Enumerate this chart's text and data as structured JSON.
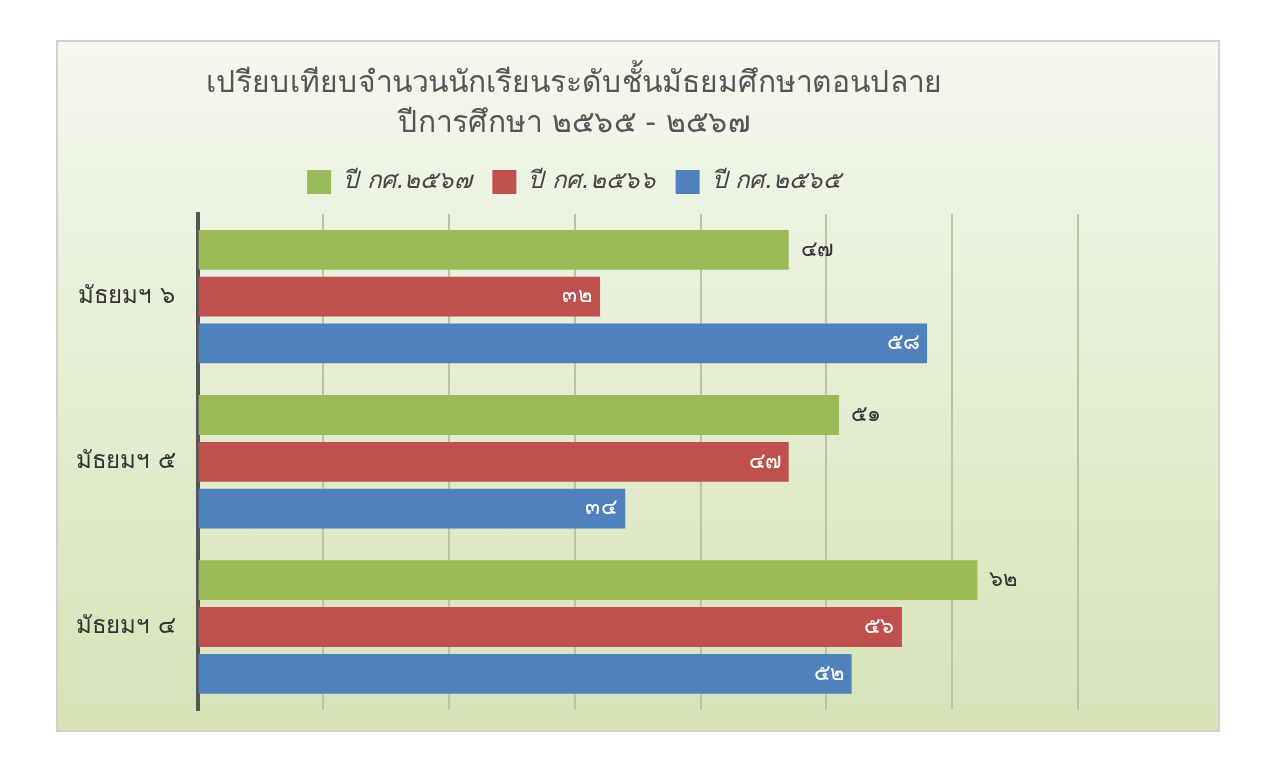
{
  "chart_data": {
    "type": "bar",
    "orientation": "horizontal",
    "title": "เปรียบเทียบจำนวนนักเรียนระดับชั้นมัธยมศึกษาตอนปลาย",
    "subtitle": "ปีการศึกษา ๒๕๖๕ - ๒๕๖๗",
    "categories": [
      "มัธยมฯ ๖",
      "มัธยมฯ ๕",
      "มัธยมฯ ๔"
    ],
    "series": [
      {
        "name": "ปี กศ.๒๕๖๗",
        "color": "#9bbb59",
        "values": [
          47,
          51,
          62
        ],
        "value_labels": [
          "๔๗",
          "๕๑",
          "๖๒"
        ]
      },
      {
        "name": "ปี กศ.๒๕๖๖",
        "color": "#c0504d",
        "values": [
          32,
          47,
          56
        ],
        "value_labels": [
          "๓๒",
          "๔๗",
          "๕๖"
        ]
      },
      {
        "name": "ปี กศ.๒๕๖๕",
        "color": "#4f81bd",
        "values": [
          58,
          34,
          52
        ],
        "value_labels": [
          "๕๘",
          "๓๔",
          "๕๒"
        ]
      }
    ],
    "xlim": [
      0,
      70
    ],
    "xticks": [
      {
        "value": 0,
        "label": null
      },
      {
        "value": 10,
        "label": null
      },
      {
        "value": 20,
        "label": null
      },
      {
        "value": 30,
        "label": null
      },
      {
        "value": 40,
        "label": null
      },
      {
        "value": 50,
        "label": null
      },
      {
        "value": 60,
        "label": null
      },
      {
        "value": 70,
        "label": null
      }
    ],
    "tick_labels": "y",
    "grid": "x",
    "legend": "top"
  }
}
